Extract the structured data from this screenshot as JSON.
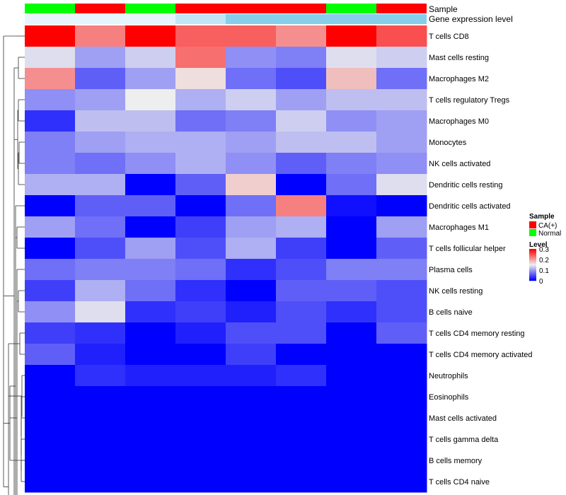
{
  "chart_data": {
    "type": "heatmap",
    "annotation_tracks": [
      {
        "name": "Sample",
        "values": [
          "Normal",
          "CA(+)",
          "Normal",
          "CA(+)",
          "CA(+)",
          "CA(+)",
          "Normal",
          "CA(+)"
        ]
      },
      {
        "name": "Gene expression level",
        "values": [
          "low",
          "low",
          "low",
          "medium",
          "high",
          "high",
          "high",
          "high"
        ]
      }
    ],
    "rows": [
      "T cells CD8",
      "Mast cells resting",
      "Macrophages M2",
      "T cells regulatory  Tregs",
      "Macrophages M0",
      "Monocytes",
      "NK cells activated",
      "Dendritic cells resting",
      "Dendritic cells activated",
      "Macrophages M1",
      "T cells follicular helper",
      "Plasma cells",
      "NK cells resting",
      "B cells naive",
      "T cells CD4 memory resting",
      "T cells CD4 memory activated",
      "Neutrophils",
      "Eosinophils",
      "Mast cells activated",
      "T cells gamma delta",
      "B cells memory",
      "T cells CD4 naive"
    ],
    "values": [
      [
        0.3,
        0.22,
        0.3,
        0.24,
        0.24,
        0.21,
        0.3,
        0.25
      ],
      [
        0.14,
        0.1,
        0.13,
        0.23,
        0.09,
        0.08,
        0.14,
        0.13
      ],
      [
        0.21,
        0.06,
        0.1,
        0.16,
        0.07,
        0.05,
        0.18,
        0.07
      ],
      [
        0.09,
        0.1,
        0.15,
        0.11,
        0.13,
        0.1,
        0.12,
        0.12
      ],
      [
        0.03,
        0.12,
        0.12,
        0.07,
        0.08,
        0.13,
        0.09,
        0.1
      ],
      [
        0.08,
        0.1,
        0.11,
        0.11,
        0.1,
        0.12,
        0.12,
        0.1
      ],
      [
        0.08,
        0.07,
        0.09,
        0.11,
        0.09,
        0.06,
        0.08,
        0.09
      ],
      [
        0.11,
        0.11,
        0.0,
        0.06,
        0.17,
        0.0,
        0.07,
        0.14
      ],
      [
        0.0,
        0.06,
        0.06,
        0.0,
        0.07,
        0.22,
        0.01,
        0.0
      ],
      [
        0.1,
        0.07,
        0.0,
        0.04,
        0.1,
        0.11,
        0.0,
        0.1
      ],
      [
        0.0,
        0.05,
        0.1,
        0.05,
        0.11,
        0.04,
        0.0,
        0.06
      ],
      [
        0.07,
        0.08,
        0.08,
        0.07,
        0.03,
        0.05,
        0.08,
        0.08
      ],
      [
        0.04,
        0.11,
        0.07,
        0.03,
        0.0,
        0.06,
        0.06,
        0.05
      ],
      [
        0.09,
        0.14,
        0.03,
        0.04,
        0.02,
        0.05,
        0.03,
        0.05
      ],
      [
        0.04,
        0.03,
        0.0,
        0.02,
        0.05,
        0.05,
        0.0,
        0.06
      ],
      [
        0.06,
        0.02,
        0.0,
        0.0,
        0.04,
        0.0,
        0.0,
        0.0
      ],
      [
        0.0,
        0.03,
        0.02,
        0.02,
        0.02,
        0.03,
        0.0,
        0.0
      ],
      [
        0.0,
        0.0,
        0.0,
        0.0,
        0.0,
        0.0,
        0.0,
        0.0
      ],
      [
        0.0,
        0.0,
        0.0,
        0.0,
        0.0,
        0.0,
        0.0,
        0.0
      ],
      [
        0.0,
        0.0,
        0.0,
        0.0,
        0.0,
        0.0,
        0.0,
        0.0
      ],
      [
        0.0,
        0.0,
        0.0,
        0.0,
        0.0,
        0.0,
        0.0,
        0.0
      ],
      [
        0.0,
        0.0,
        0.0,
        0.0,
        0.0,
        0.0,
        0.0,
        0.0
      ]
    ],
    "color_scale": {
      "low": "#0000FF",
      "mid": "#EEEEEE",
      "high": "#FF0000",
      "min": 0,
      "max": 0.3
    },
    "row_dendrogram": true,
    "legend": {
      "position": "right",
      "sample_title": "Sample",
      "sample_entries": [
        {
          "label": "CA(+)",
          "color": "#FF0000"
        },
        {
          "label": "Normal",
          "color": "#00FF00"
        }
      ],
      "level_title": "Level",
      "level_ticks": [
        "0.3",
        "0.2",
        "0.1",
        "0"
      ],
      "level_tick_values": [
        0.3,
        0.2,
        0.1,
        0
      ]
    },
    "annotation_colors": {
      "sample": {
        "Normal": "#00FF00",
        "CA(+)": "#FF0000"
      },
      "expression": {
        "low": "#E6F5FB",
        "medium": "#C2E6F5",
        "high": "#87CEEB"
      }
    }
  }
}
